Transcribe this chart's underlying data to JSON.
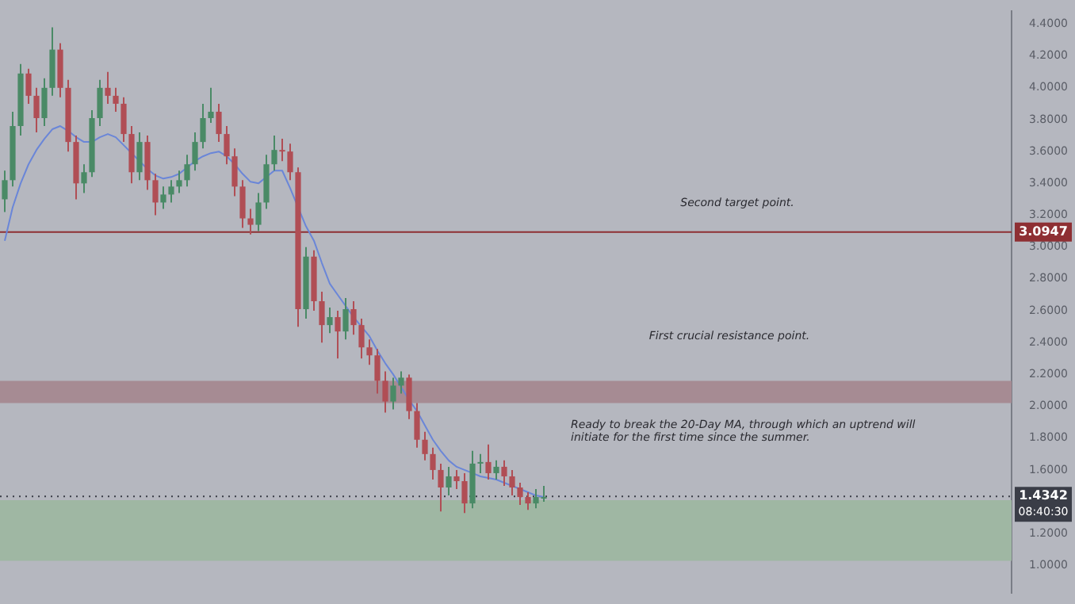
{
  "chart_data": {
    "type": "candlestick",
    "tick_labels": "y",
    "categories": [
      null,
      null,
      null,
      null,
      null,
      null,
      null,
      null,
      null,
      null,
      null,
      null,
      null,
      null,
      null,
      null,
      null,
      null,
      null,
      null,
      null,
      null,
      null,
      null,
      null,
      null,
      null,
      null,
      null,
      null,
      null,
      null,
      null,
      null,
      null,
      null,
      null,
      null,
      null,
      null,
      null,
      null,
      null,
      null,
      null,
      null,
      null,
      null,
      null,
      null,
      null,
      null,
      null,
      null,
      null,
      null,
      null,
      null,
      null,
      null,
      null,
      null,
      null,
      null,
      null,
      null,
      null,
      null,
      null
    ],
    "ohlc": [
      [
        3.3,
        3.48,
        3.22,
        3.42
      ],
      [
        3.42,
        3.85,
        3.38,
        3.76
      ],
      [
        3.76,
        4.15,
        3.7,
        4.09
      ],
      [
        4.09,
        4.12,
        3.9,
        3.95
      ],
      [
        3.95,
        4.0,
        3.72,
        3.81
      ],
      [
        3.81,
        4.06,
        3.76,
        4.0
      ],
      [
        4.0,
        4.38,
        3.95,
        4.24
      ],
      [
        4.24,
        4.28,
        3.94,
        4.0
      ],
      [
        4.0,
        4.05,
        3.6,
        3.66
      ],
      [
        3.66,
        3.7,
        3.3,
        3.4
      ],
      [
        3.4,
        3.52,
        3.34,
        3.47
      ],
      [
        3.47,
        3.86,
        3.44,
        3.81
      ],
      [
        3.81,
        4.05,
        3.76,
        4.0
      ],
      [
        4.0,
        4.1,
        3.9,
        3.95
      ],
      [
        3.95,
        4.0,
        3.85,
        3.9
      ],
      [
        3.9,
        3.94,
        3.66,
        3.71
      ],
      [
        3.71,
        3.76,
        3.4,
        3.47
      ],
      [
        3.47,
        3.72,
        3.42,
        3.66
      ],
      [
        3.66,
        3.7,
        3.36,
        3.42
      ],
      [
        3.42,
        3.46,
        3.2,
        3.28
      ],
      [
        3.28,
        3.38,
        3.24,
        3.33
      ],
      [
        3.33,
        3.42,
        3.28,
        3.38
      ],
      [
        3.38,
        3.48,
        3.34,
        3.42
      ],
      [
        3.42,
        3.58,
        3.38,
        3.52
      ],
      [
        3.52,
        3.72,
        3.48,
        3.66
      ],
      [
        3.66,
        3.9,
        3.62,
        3.81
      ],
      [
        3.81,
        4.0,
        3.78,
        3.85
      ],
      [
        3.85,
        3.9,
        3.66,
        3.71
      ],
      [
        3.71,
        3.76,
        3.52,
        3.57
      ],
      [
        3.57,
        3.62,
        3.32,
        3.38
      ],
      [
        3.38,
        3.42,
        3.12,
        3.18
      ],
      [
        3.18,
        3.24,
        3.08,
        3.14
      ],
      [
        3.14,
        3.34,
        3.1,
        3.28
      ],
      [
        3.28,
        3.58,
        3.24,
        3.52
      ],
      [
        3.52,
        3.7,
        3.48,
        3.61
      ],
      [
        3.61,
        3.68,
        3.54,
        3.6
      ],
      [
        3.6,
        3.65,
        3.42,
        3.47
      ],
      [
        3.47,
        3.5,
        2.5,
        2.61
      ],
      [
        2.61,
        3.0,
        2.55,
        2.94
      ],
      [
        2.94,
        2.98,
        2.6,
        2.66
      ],
      [
        2.66,
        2.72,
        2.4,
        2.51
      ],
      [
        2.51,
        2.62,
        2.46,
        2.56
      ],
      [
        2.56,
        2.6,
        2.3,
        2.47
      ],
      [
        2.47,
        2.68,
        2.42,
        2.61
      ],
      [
        2.61,
        2.66,
        2.45,
        2.51
      ],
      [
        2.51,
        2.55,
        2.3,
        2.37
      ],
      [
        2.37,
        2.42,
        2.26,
        2.32
      ],
      [
        2.32,
        2.36,
        2.08,
        2.16
      ],
      [
        2.16,
        2.22,
        1.96,
        2.03
      ],
      [
        2.03,
        2.18,
        1.98,
        2.13
      ],
      [
        2.13,
        2.22,
        2.08,
        2.18
      ],
      [
        2.18,
        2.2,
        1.92,
        1.97
      ],
      [
        1.97,
        2.02,
        1.74,
        1.79
      ],
      [
        1.79,
        1.84,
        1.66,
        1.7
      ],
      [
        1.7,
        1.74,
        1.54,
        1.6
      ],
      [
        1.6,
        1.64,
        1.34,
        1.49
      ],
      [
        1.49,
        1.62,
        1.44,
        1.56
      ],
      [
        1.56,
        1.6,
        1.48,
        1.53
      ],
      [
        1.53,
        1.58,
        1.33,
        1.39
      ],
      [
        1.39,
        1.72,
        1.36,
        1.64
      ],
      [
        1.64,
        1.7,
        1.58,
        1.65
      ],
      [
        1.65,
        1.76,
        1.54,
        1.58
      ],
      [
        1.58,
        1.66,
        1.54,
        1.62
      ],
      [
        1.62,
        1.66,
        1.5,
        1.56
      ],
      [
        1.56,
        1.6,
        1.44,
        1.49
      ],
      [
        1.49,
        1.52,
        1.38,
        1.43
      ],
      [
        1.43,
        1.46,
        1.35,
        1.39
      ],
      [
        1.39,
        1.48,
        1.36,
        1.43
      ],
      [
        1.43,
        1.5,
        1.4,
        1.43
      ]
    ],
    "series": [
      {
        "type": "line",
        "color": "#6a86d8",
        "values": [
          3.04,
          3.25,
          3.4,
          3.52,
          3.61,
          3.68,
          3.74,
          3.76,
          3.73,
          3.69,
          3.66,
          3.66,
          3.69,
          3.71,
          3.69,
          3.64,
          3.59,
          3.54,
          3.49,
          3.45,
          3.43,
          3.44,
          3.46,
          3.5,
          3.54,
          3.57,
          3.59,
          3.6,
          3.57,
          3.52,
          3.46,
          3.41,
          3.4,
          3.44,
          3.48,
          3.48,
          3.37,
          null,
          3.13,
          3.04,
          2.9,
          2.77,
          2.7,
          2.63,
          2.56,
          2.5,
          2.44,
          2.35,
          2.27,
          2.2,
          2.12,
          2.04,
          1.97,
          1.88,
          1.79,
          1.72,
          1.66,
          1.62,
          1.6,
          1.58,
          1.56,
          1.55,
          1.54,
          1.52,
          1.5,
          1.48,
          1.46,
          1.44,
          1.43
        ]
      }
    ],
    "ylim": [
      0.83,
      4.48
    ],
    "yticks": [
      {
        "value": 1.0,
        "label": "1.0000"
      },
      {
        "value": 1.2,
        "label": "1.2000"
      },
      {
        "value": 1.6,
        "label": "1.6000"
      },
      {
        "value": 1.8,
        "label": "1.8000"
      },
      {
        "value": 2.0,
        "label": "2.0000"
      },
      {
        "value": 2.2,
        "label": "2.2000"
      },
      {
        "value": 2.4,
        "label": "2.4000"
      },
      {
        "value": 2.6,
        "label": "2.6000"
      },
      {
        "value": 2.8,
        "label": "2.8000"
      },
      {
        "value": 3.0,
        "label": "3.0000"
      },
      {
        "value": 3.2,
        "label": "3.2000"
      },
      {
        "value": 3.4,
        "label": "3.4000"
      },
      {
        "value": 3.6,
        "label": "3.6000"
      },
      {
        "value": 3.8,
        "label": "3.8000"
      },
      {
        "value": 4.0,
        "label": "4.0000"
      },
      {
        "value": 4.2,
        "label": "4.2000"
      },
      {
        "value": 4.4,
        "label": "4.4000"
      }
    ],
    "ref_lines": [
      {
        "axis": "y",
        "value": 3.0947,
        "label": "3.0947",
        "color": "#8e2f33",
        "line_style": "solid"
      },
      {
        "axis": "y",
        "value": 1.4342,
        "label": "1.4342",
        "color": "#3a3d47",
        "line_style": "dotted"
      }
    ],
    "bands": [
      {
        "axis": "y",
        "from": 2.02,
        "to": 2.16,
        "color": "#a68b93"
      },
      {
        "axis": "y",
        "from": 1.03,
        "to": 1.41,
        "color": "#9fb7a3"
      }
    ],
    "annotations": [
      "Second target point.",
      "First crucial resistance point.",
      "Ready to break the 20-Day MA, through which an uptrend will initiate for the first time since the summer.",
      "08:40:30"
    ]
  }
}
